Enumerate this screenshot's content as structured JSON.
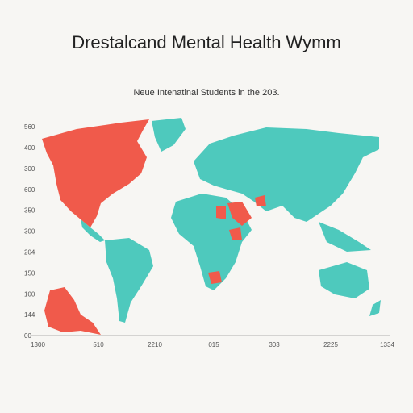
{
  "header": {
    "title": "Drestalcand Mental Health Wymm",
    "subtitle": "Neue Intenatinal Students in the 203."
  },
  "axes": {
    "y_labels": [
      "560",
      "400",
      "300",
      "600",
      "350",
      "300",
      "204",
      "150",
      "100",
      "144",
      "00"
    ],
    "x_labels": [
      "1300",
      "510",
      "2210",
      "015",
      "303",
      "2225",
      "1334"
    ]
  }
}
